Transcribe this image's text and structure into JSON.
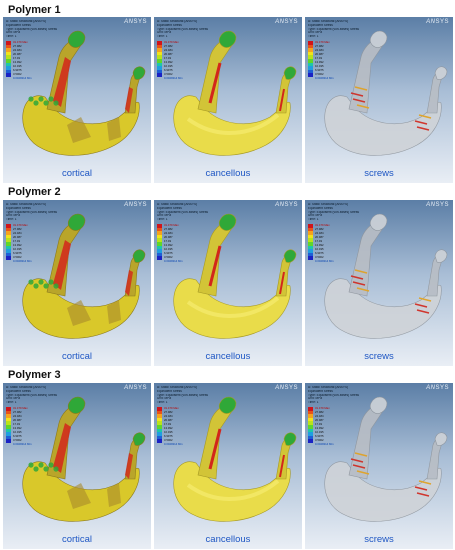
{
  "groups": [
    {
      "title": "Polymer 1"
    },
    {
      "title": "Polymer 2"
    },
    {
      "title": "Polymer 3"
    }
  ],
  "panels": {
    "cortical": {
      "label": "cortical"
    },
    "cancellous": {
      "label": "cancellous"
    },
    "screws": {
      "label": "screws"
    }
  },
  "logo": {
    "glyph": "AN",
    "text": "SYS"
  },
  "legend": {
    "header1": "A: Static Structural (ANSYS)",
    "header2": "Equivalent Stress",
    "header3": "Type: Equivalent (von-Mises) Stress",
    "header4": "Unit: MPa",
    "header5": "Time: 1",
    "colors": [
      "#d0141a",
      "#e8531a",
      "#f5a21e",
      "#f2e21c",
      "#b9e21a",
      "#5fd62a",
      "#1dc7a8",
      "#1f9ee0",
      "#1e5fd6",
      "#1a22c4"
    ],
    "values": [
      "31.479 Max",
      "27.982",
      "24.484",
      "20.987",
      "17.49",
      "13.992",
      "10.495",
      "6.9975",
      "3.5002",
      "0.0029314 Min"
    ]
  },
  "colors": {
    "bg_top": "#5b7ea6",
    "bg_bottom": "#e9eef5",
    "label": "#1f57c4",
    "bone_yellow": "#d9c82a",
    "bone_green": "#2fa838",
    "bone_red": "#d2261b",
    "ghost": "#cfd3d8"
  }
}
